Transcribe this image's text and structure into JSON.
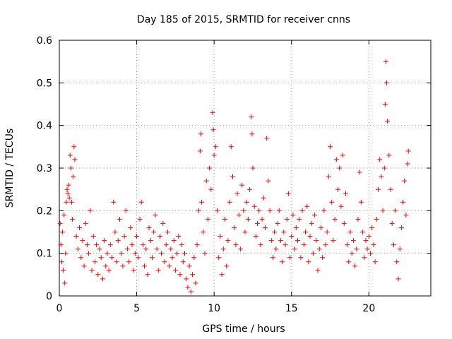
{
  "chart_data": {
    "type": "scatter",
    "title": "Day 185 of 2015, SRMTID for receiver cnns",
    "xlabel": "GPS time / hours",
    "ylabel": "SRMTID / TECUs",
    "xlim": [
      0,
      24
    ],
    "ylim": [
      0,
      0.6
    ],
    "grid": true,
    "marker": "+",
    "xticks": [
      0,
      5,
      10,
      15,
      20
    ],
    "xtick_labels": [
      "0",
      "5",
      "10",
      "15",
      "20"
    ],
    "yticks": [
      0,
      0.1,
      0.2,
      0.3,
      0.4,
      0.5,
      0.6
    ],
    "ytick_labels": [
      "0",
      "0.1",
      "0.2",
      "0.3",
      "0.4",
      "0.5",
      "0.6"
    ],
    "series": [
      {
        "name": "SRMTID",
        "color": "#ff0000",
        "points": [
          [
            0.05,
            0.17
          ],
          [
            0.1,
            0.12
          ],
          [
            0.15,
            0.08
          ],
          [
            0.2,
            0.15
          ],
          [
            0.25,
            0.06
          ],
          [
            0.3,
            0.19
          ],
          [
            0.35,
            0.03
          ],
          [
            0.4,
            0.1
          ],
          [
            0.45,
            0.22
          ],
          [
            0.5,
            0.25
          ],
          [
            0.55,
            0.24
          ],
          [
            0.6,
            0.26
          ],
          [
            0.65,
            0.23
          ],
          [
            0.7,
            0.33
          ],
          [
            0.75,
            0.3
          ],
          [
            0.8,
            0.22
          ],
          [
            0.85,
            0.18
          ],
          [
            0.9,
            0.28
          ],
          [
            0.95,
            0.35
          ],
          [
            1.0,
            0.32
          ],
          [
            1.1,
            0.14
          ],
          [
            1.2,
            0.11
          ],
          [
            1.3,
            0.16
          ],
          [
            1.4,
            0.09
          ],
          [
            1.5,
            0.13
          ],
          [
            1.6,
            0.07
          ],
          [
            1.7,
            0.17
          ],
          [
            1.8,
            0.12
          ],
          [
            1.9,
            0.1
          ],
          [
            2.0,
            0.2
          ],
          [
            2.1,
            0.06
          ],
          [
            2.2,
            0.14
          ],
          [
            2.3,
            0.08
          ],
          [
            2.4,
            0.12
          ],
          [
            2.5,
            0.05
          ],
          [
            2.6,
            0.11
          ],
          [
            2.7,
            0.09
          ],
          [
            2.8,
            0.04
          ],
          [
            2.9,
            0.13
          ],
          [
            3.0,
            0.07
          ],
          [
            3.1,
            0.1
          ],
          [
            3.2,
            0.06
          ],
          [
            3.3,
            0.12
          ],
          [
            3.4,
            0.09
          ],
          [
            3.5,
            0.22
          ],
          [
            3.6,
            0.15
          ],
          [
            3.7,
            0.08
          ],
          [
            3.8,
            0.13
          ],
          [
            3.9,
            0.18
          ],
          [
            4.0,
            0.1
          ],
          [
            4.1,
            0.07
          ],
          [
            4.2,
            0.14
          ],
          [
            4.3,
            0.2
          ],
          [
            4.4,
            0.11
          ],
          [
            4.5,
            0.08
          ],
          [
            4.6,
            0.16
          ],
          [
            4.7,
            0.12
          ],
          [
            4.8,
            0.06
          ],
          [
            4.9,
            0.1
          ],
          [
            5.0,
            0.14
          ],
          [
            5.1,
            0.09
          ],
          [
            5.2,
            0.18
          ],
          [
            5.3,
            0.22
          ],
          [
            5.4,
            0.12
          ],
          [
            5.5,
            0.07
          ],
          [
            5.6,
            0.11
          ],
          [
            5.7,
            0.05
          ],
          [
            5.8,
            0.16
          ],
          [
            5.9,
            0.13
          ],
          [
            6.0,
            0.09
          ],
          [
            6.1,
            0.15
          ],
          [
            6.2,
            0.19
          ],
          [
            6.3,
            0.11
          ],
          [
            6.4,
            0.06
          ],
          [
            6.5,
            0.14
          ],
          [
            6.6,
            0.1
          ],
          [
            6.7,
            0.17
          ],
          [
            6.8,
            0.08
          ],
          [
            6.9,
            0.12
          ],
          [
            7.0,
            0.15
          ],
          [
            7.1,
            0.07
          ],
          [
            7.2,
            0.11
          ],
          [
            7.3,
            0.09
          ],
          [
            7.4,
            0.13
          ],
          [
            7.5,
            0.06
          ],
          [
            7.6,
            0.1
          ],
          [
            7.7,
            0.14
          ],
          [
            7.8,
            0.05
          ],
          [
            7.9,
            0.12
          ],
          [
            8.0,
            0.08
          ],
          [
            8.1,
            0.1
          ],
          [
            8.2,
            0.04
          ],
          [
            8.3,
            0.02
          ],
          [
            8.4,
            0.07
          ],
          [
            8.5,
            0.01
          ],
          [
            8.6,
            0.05
          ],
          [
            8.7,
            0.09
          ],
          [
            8.8,
            0.03
          ],
          [
            8.9,
            0.12
          ],
          [
            9.0,
            0.2
          ],
          [
            9.1,
            0.34
          ],
          [
            9.15,
            0.38
          ],
          [
            9.2,
            0.22
          ],
          [
            9.3,
            0.15
          ],
          [
            9.4,
            0.1
          ],
          [
            9.5,
            0.27
          ],
          [
            9.6,
            0.18
          ],
          [
            9.7,
            0.3
          ],
          [
            9.8,
            0.25
          ],
          [
            9.9,
            0.43
          ],
          [
            9.95,
            0.39
          ],
          [
            10.0,
            0.33
          ],
          [
            10.1,
            0.35
          ],
          [
            10.2,
            0.2
          ],
          [
            10.3,
            0.09
          ],
          [
            10.4,
            0.14
          ],
          [
            10.5,
            0.05
          ],
          [
            10.6,
            0.11
          ],
          [
            10.7,
            0.18
          ],
          [
            10.8,
            0.07
          ],
          [
            10.9,
            0.13
          ],
          [
            11.0,
            0.22
          ],
          [
            11.1,
            0.35
          ],
          [
            11.2,
            0.28
          ],
          [
            11.3,
            0.16
          ],
          [
            11.4,
            0.12
          ],
          [
            11.5,
            0.24
          ],
          [
            11.6,
            0.19
          ],
          [
            11.7,
            0.11
          ],
          [
            11.8,
            0.26
          ],
          [
            11.9,
            0.2
          ],
          [
            12.0,
            0.15
          ],
          [
            12.1,
            0.22
          ],
          [
            12.2,
            0.18
          ],
          [
            12.3,
            0.25
          ],
          [
            12.4,
            0.42
          ],
          [
            12.45,
            0.38
          ],
          [
            12.5,
            0.3
          ],
          [
            12.6,
            0.21
          ],
          [
            12.7,
            0.14
          ],
          [
            12.8,
            0.17
          ],
          [
            12.9,
            0.2
          ],
          [
            13.0,
            0.12
          ],
          [
            13.1,
            0.18
          ],
          [
            13.2,
            0.23
          ],
          [
            13.3,
            0.16
          ],
          [
            13.4,
            0.37
          ],
          [
            13.5,
            0.27
          ],
          [
            13.6,
            0.2
          ],
          [
            13.7,
            0.13
          ],
          [
            13.8,
            0.09
          ],
          [
            13.9,
            0.15
          ],
          [
            14.0,
            0.11
          ],
          [
            14.1,
            0.17
          ],
          [
            14.2,
            0.2
          ],
          [
            14.3,
            0.13
          ],
          [
            14.4,
            0.08
          ],
          [
            14.5,
            0.15
          ],
          [
            14.6,
            0.12
          ],
          [
            14.7,
            0.18
          ],
          [
            14.8,
            0.24
          ],
          [
            14.9,
            0.09
          ],
          [
            15.0,
            0.14
          ],
          [
            15.1,
            0.19
          ],
          [
            15.2,
            0.11
          ],
          [
            15.3,
            0.16
          ],
          [
            15.4,
            0.13
          ],
          [
            15.5,
            0.18
          ],
          [
            15.6,
            0.09
          ],
          [
            15.7,
            0.2
          ],
          [
            15.8,
            0.12
          ],
          [
            15.9,
            0.15
          ],
          [
            16.0,
            0.21
          ],
          [
            16.1,
            0.08
          ],
          [
            16.2,
            0.14
          ],
          [
            16.3,
            0.17
          ],
          [
            16.4,
            0.1
          ],
          [
            16.5,
            0.19
          ],
          [
            16.6,
            0.13
          ],
          [
            16.7,
            0.06
          ],
          [
            16.8,
            0.11
          ],
          [
            16.9,
            0.16
          ],
          [
            17.0,
            0.09
          ],
          [
            17.1,
            0.2
          ],
          [
            17.2,
            0.12
          ],
          [
            17.3,
            0.15
          ],
          [
            17.4,
            0.28
          ],
          [
            17.5,
            0.35
          ],
          [
            17.6,
            0.22
          ],
          [
            17.7,
            0.13
          ],
          [
            17.8,
            0.18
          ],
          [
            17.9,
            0.32
          ],
          [
            18.0,
            0.25
          ],
          [
            18.1,
            0.3
          ],
          [
            18.2,
            0.21
          ],
          [
            18.3,
            0.33
          ],
          [
            18.4,
            0.17
          ],
          [
            18.5,
            0.24
          ],
          [
            18.6,
            0.12
          ],
          [
            18.7,
            0.08
          ],
          [
            18.8,
            0.15
          ],
          [
            18.9,
            0.1
          ],
          [
            19.0,
            0.13
          ],
          [
            19.1,
            0.07
          ],
          [
            19.2,
            0.11
          ],
          [
            19.3,
            0.18
          ],
          [
            19.4,
            0.29
          ],
          [
            19.5,
            0.22
          ],
          [
            19.6,
            0.15
          ],
          [
            19.7,
            0.09
          ],
          [
            19.8,
            0.13
          ],
          [
            19.9,
            0.11
          ],
          [
            20.0,
            0.14
          ],
          [
            20.1,
            0.1
          ],
          [
            20.2,
            0.16
          ],
          [
            20.3,
            0.12
          ],
          [
            20.4,
            0.08
          ],
          [
            20.5,
            0.18
          ],
          [
            20.6,
            0.25
          ],
          [
            20.7,
            0.32
          ],
          [
            20.8,
            0.28
          ],
          [
            20.9,
            0.2
          ],
          [
            21.0,
            0.3
          ],
          [
            21.05,
            0.45
          ],
          [
            21.1,
            0.55
          ],
          [
            21.15,
            0.5
          ],
          [
            21.2,
            0.41
          ],
          [
            21.3,
            0.33
          ],
          [
            21.4,
            0.25
          ],
          [
            21.5,
            0.17
          ],
          [
            21.6,
            0.12
          ],
          [
            21.7,
            0.2
          ],
          [
            21.8,
            0.08
          ],
          [
            21.9,
            0.04
          ],
          [
            22.0,
            0.11
          ],
          [
            22.1,
            0.16
          ],
          [
            22.2,
            0.22
          ],
          [
            22.3,
            0.27
          ],
          [
            22.4,
            0.19
          ],
          [
            22.5,
            0.31
          ],
          [
            22.55,
            0.34
          ]
        ]
      }
    ]
  }
}
